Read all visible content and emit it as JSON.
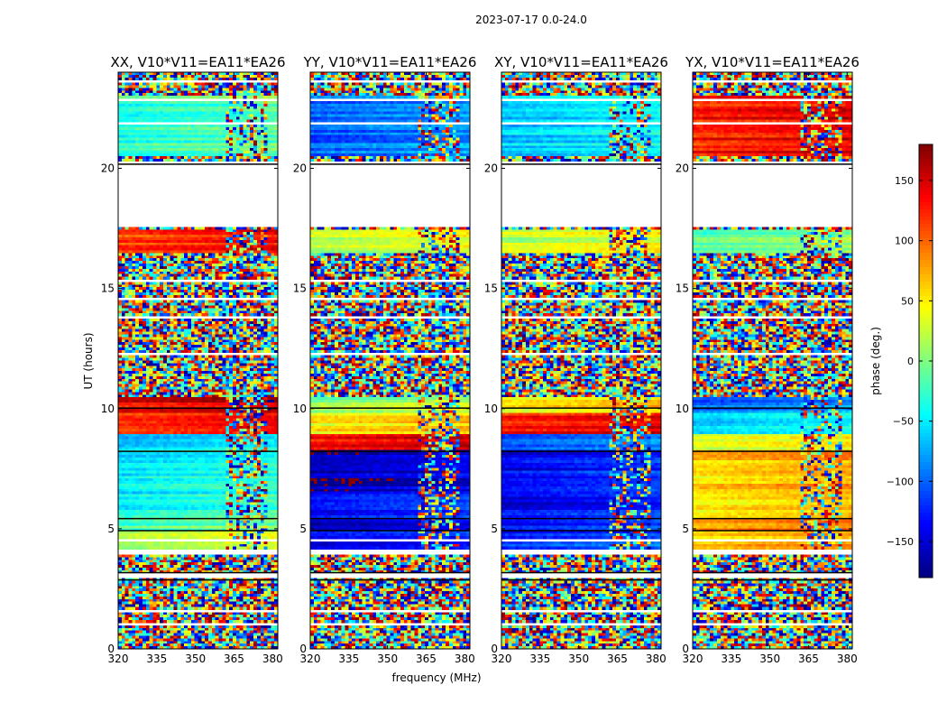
{
  "figure": {
    "suptitle": "2023-07-17 0.0-24.0"
  },
  "chart_data": {
    "type": "heatmap",
    "title": "2023-07-17 0.0-24.0",
    "xlabel": "frequency (MHz)",
    "ylabel": "UT (hours)",
    "xlim": [
      320,
      382
    ],
    "ylim": [
      0,
      24
    ],
    "xticks": [
      320,
      335,
      350,
      365,
      380
    ],
    "yticks": [
      0,
      5,
      10,
      15,
      20
    ],
    "colorbar": {
      "label": "phase (deg.)",
      "colormap": "jet",
      "range": [
        -180,
        180
      ],
      "ticks": [
        150,
        100,
        50,
        0,
        -50,
        -100,
        -150
      ]
    },
    "panels": [
      {
        "title": "XX, V10*V11=EA11*EA26",
        "mode": "XX"
      },
      {
        "title": "YY, V10*V11=EA11*EA26",
        "mode": "YY"
      },
      {
        "title": "XY, V10*V11=EA11*EA26",
        "mode": "XY"
      },
      {
        "title": "YX, V10*V11=EA11*EA26",
        "mode": "YX"
      }
    ]
  }
}
